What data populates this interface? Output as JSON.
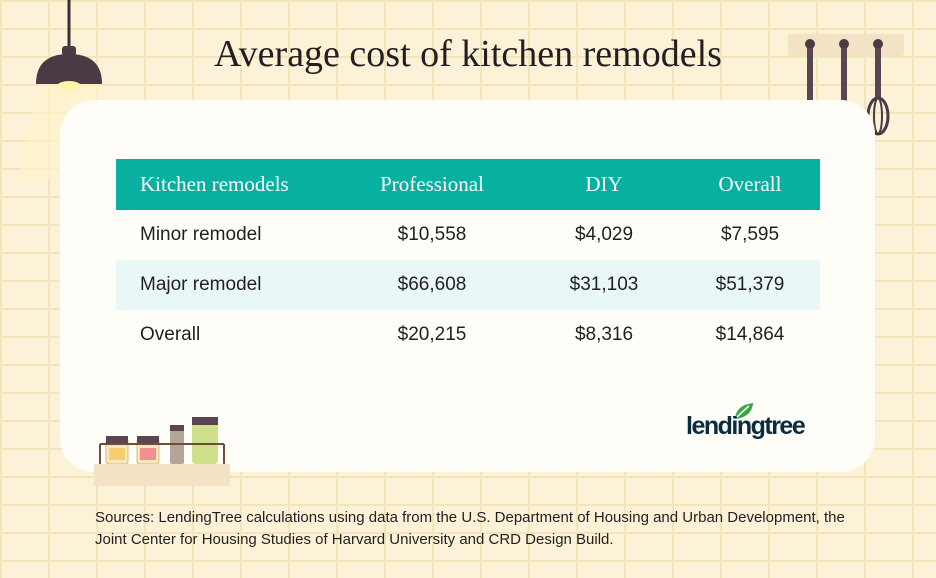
{
  "title": "Average cost of kitchen remodels",
  "chart_data": {
    "type": "table",
    "columns": [
      "Kitchen remodels",
      "Professional",
      "DIY",
      "Overall"
    ],
    "rows": [
      [
        "Minor remodel",
        "$10,558",
        "$4,029",
        "$7,595"
      ],
      [
        "Major remodel",
        "$66,608",
        "$31,103",
        "$51,379"
      ],
      [
        "Overall",
        "$20,215",
        "$8,316",
        "$14,864"
      ]
    ]
  },
  "logo": {
    "text": "lendingtree"
  },
  "source": "Sources: LendingTree calculations using data from the U.S. Department of Housing and Urban Development, the Joint Center for Housing Studies of Harvard University and CRD Design Build.",
  "colors": {
    "header_bg": "#07b0a0",
    "shaded_row": "#e9f8f7",
    "background": "#fbf2d7",
    "logo_leaf": "#3aa744"
  }
}
